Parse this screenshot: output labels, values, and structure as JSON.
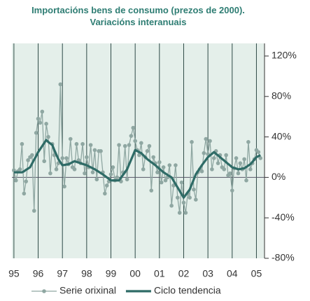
{
  "chart_data": {
    "type": "line",
    "title": "Importacións bens de consumo (prezos de 2000).",
    "subtitle": "Variacións interanuais",
    "xlim": [
      -1,
      124
    ],
    "xticks": [
      {
        "value": 0,
        "label": "95"
      },
      {
        "value": 12,
        "label": "96"
      },
      {
        "value": 24,
        "label": "97"
      },
      {
        "value": 36,
        "label": "98"
      },
      {
        "value": 48,
        "label": "99"
      },
      {
        "value": 60,
        "label": "00"
      },
      {
        "value": 72,
        "label": "01"
      },
      {
        "value": 84,
        "label": "02"
      },
      {
        "value": 96,
        "label": "03"
      },
      {
        "value": 108,
        "label": "04"
      },
      {
        "value": 120,
        "label": "05"
      }
    ],
    "ylim": [
      -80,
      120
    ],
    "yticks": [
      {
        "value": -80,
        "label": "-80%"
      },
      {
        "value": -40,
        "label": "-40%"
      },
      {
        "value": 0,
        "label": "0%"
      },
      {
        "value": 40,
        "label": "40%"
      },
      {
        "value": 80,
        "label": "80%"
      },
      {
        "value": 120,
        "label": "120%"
      }
    ],
    "x": [
      0,
      1,
      2,
      3,
      4,
      5,
      6,
      7,
      8,
      9,
      10,
      11,
      12,
      13,
      14,
      15,
      16,
      17,
      18,
      19,
      20,
      21,
      22,
      23,
      24,
      25,
      26,
      27,
      28,
      29,
      30,
      31,
      32,
      33,
      34,
      35,
      36,
      37,
      38,
      39,
      40,
      41,
      42,
      43,
      44,
      45,
      46,
      47,
      48,
      49,
      50,
      51,
      52,
      53,
      54,
      55,
      56,
      57,
      58,
      59,
      60,
      61,
      62,
      63,
      64,
      65,
      66,
      67,
      68,
      69,
      70,
      71,
      72,
      73,
      74,
      75,
      76,
      77,
      78,
      79,
      80,
      81,
      82,
      83,
      84,
      85,
      86,
      87,
      88,
      89,
      90,
      91,
      92,
      93,
      94,
      95,
      96,
      97,
      98,
      99,
      100,
      101,
      102,
      103,
      104,
      105,
      106,
      107,
      108,
      109,
      110,
      111,
      112,
      113,
      114,
      115,
      116,
      117,
      118,
      119,
      120,
      121,
      122
    ],
    "series": [
      {
        "name": "Serie orixinal",
        "color": "#8fa7a2",
        "markers": true,
        "values": [
          7,
          -3,
          6,
          8,
          33,
          -16,
          -4,
          17,
          20,
          22,
          -33,
          44,
          58,
          54,
          65,
          16,
          53,
          40,
          4,
          33,
          22,
          8,
          14,
          92,
          19,
          -9,
          19,
          13,
          38,
          10,
          8,
          33,
          17,
          14,
          33,
          4,
          20,
          10,
          32,
          5,
          27,
          -2,
          26,
          26,
          5,
          -16,
          -8,
          -4,
          3,
          10,
          -3,
          0,
          32,
          -4,
          5,
          31,
          -2,
          32,
          41,
          49,
          36,
          27,
          22,
          34,
          8,
          20,
          26,
          31,
          -13,
          20,
          14,
          5,
          15,
          -5,
          10,
          -3,
          0,
          12,
          -28,
          -8,
          12,
          -20,
          -35,
          -5,
          -25,
          -35,
          -16,
          -20,
          35,
          -12,
          -22,
          5,
          8,
          6,
          24,
          38,
          23,
          36,
          8,
          19,
          26,
          14,
          22,
          10,
          8,
          22,
          2,
          4,
          -13,
          9,
          19,
          4,
          14,
          8,
          18,
          -3,
          35,
          8,
          14,
          18,
          27,
          25,
          19
        ]
      },
      {
        "name": "Ciclo tendencia",
        "color": "#2e6b66",
        "markers": false,
        "values": [
          5,
          5,
          5,
          5,
          5,
          6,
          7.5,
          8.7,
          10,
          13.8,
          17.5,
          21,
          25,
          28,
          31,
          34,
          37,
          35,
          33.5,
          32,
          27,
          22.5,
          18,
          15,
          12,
          12.3,
          12.7,
          13,
          14,
          15,
          16,
          15.3,
          14.7,
          14,
          13.3,
          12.7,
          12,
          11,
          10,
          9,
          8,
          6.8,
          5.5,
          4.2,
          3,
          1.5,
          0,
          -1.5,
          -3,
          -3,
          -3,
          -3,
          -3,
          -0.2,
          2.5,
          5.2,
          8,
          12.8,
          17.5,
          22.2,
          27,
          26,
          25,
          24,
          22,
          20,
          18,
          16.5,
          15,
          13.5,
          12,
          10.2,
          8.5,
          6.8,
          5,
          3.8,
          2.5,
          1.2,
          0,
          -3.3,
          -6.7,
          -10,
          -13.3,
          -16.7,
          -20,
          -17.3,
          -14.7,
          -12,
          -7,
          -2,
          3,
          6,
          9,
          12,
          14.7,
          17.3,
          20,
          21.7,
          23.3,
          25,
          23.3,
          21.7,
          20,
          18.3,
          16.7,
          15,
          13.3,
          11.7,
          10,
          9.3,
          8.7,
          8,
          8.3,
          8.7,
          9,
          10.3,
          11.7,
          13,
          15.3,
          17.7,
          20,
          21,
          22
        ]
      }
    ]
  }
}
